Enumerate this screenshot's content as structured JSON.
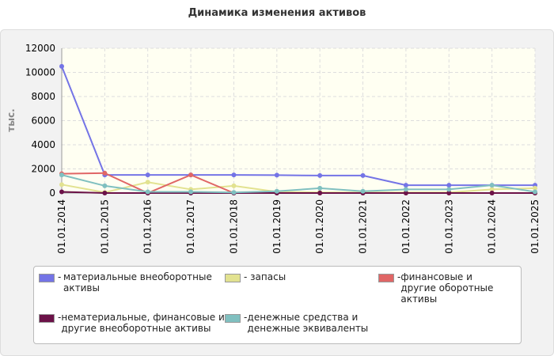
{
  "chart_data": {
    "type": "line",
    "title": "Динамика изменения активов",
    "y_label": "тыс.",
    "categories": [
      "01.01.2014",
      "01.01.2015",
      "01.01.2016",
      "01.01.2017",
      "01.01.2018",
      "01.01.2019",
      "01.01.2020",
      "01.01.2021",
      "01.01.2022",
      "01.01.2023",
      "01.01.2024",
      "01.01.2025"
    ],
    "series": [
      {
        "name": "материальные внеоборотные активы",
        "color": "#7474e6",
        "values": [
          10500,
          1500,
          1500,
          1500,
          1500,
          1480,
          1450,
          1450,
          650,
          650,
          650,
          650
        ]
      },
      {
        "name": "запасы",
        "color": "#e2e290",
        "values": [
          700,
          50,
          900,
          300,
          600,
          100,
          50,
          50,
          50,
          50,
          300,
          400
        ]
      },
      {
        "name": "финансовые и другие оборотные активы",
        "color": "#e06666",
        "values": [
          1600,
          1650,
          0,
          1500,
          0,
          0,
          0,
          0,
          0,
          0,
          0,
          0
        ]
      },
      {
        "name": "нематериальные, финансовые и другие внеоборотные активы",
        "color": "#6b1248",
        "values": [
          100,
          0,
          0,
          0,
          0,
          0,
          0,
          0,
          0,
          0,
          0,
          0
        ]
      },
      {
        "name": "денежные средства и денежные эквиваленты",
        "color": "#80c0c0",
        "values": [
          1500,
          600,
          100,
          100,
          50,
          150,
          400,
          150,
          300,
          300,
          650,
          100
        ]
      }
    ],
    "ylim": [
      0,
      12000
    ],
    "yticks": [
      0,
      2000,
      4000,
      6000,
      8000,
      10000,
      12000
    ],
    "grid": true,
    "legend": "bottom"
  }
}
